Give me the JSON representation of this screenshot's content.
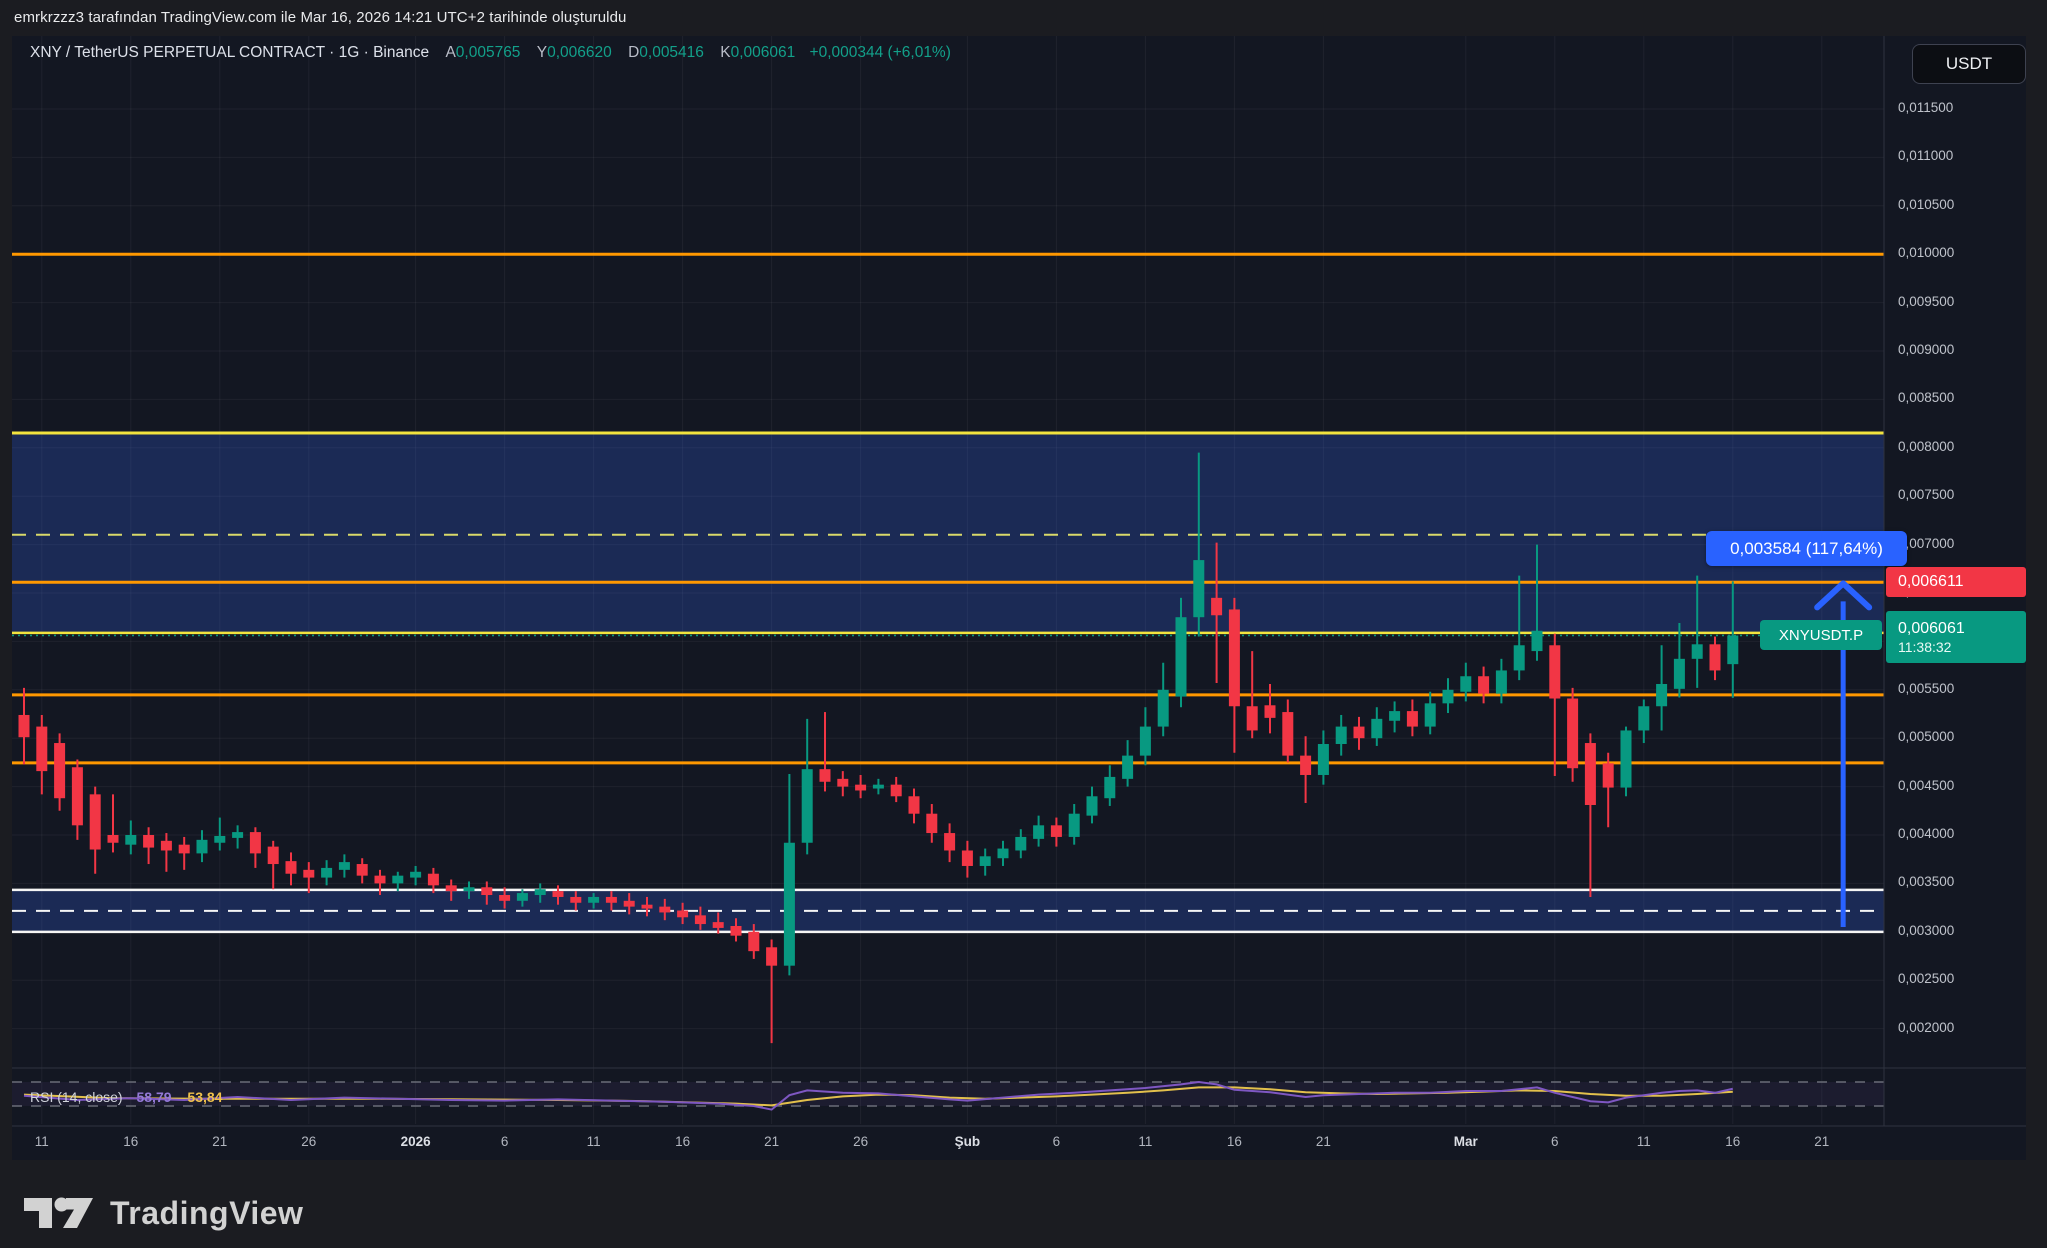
{
  "attribution": "emrkrzzz3 tarafından TradingView.com ile Mar 16, 2026 14:21 UTC+2 tarihinde oluşturuldu",
  "currency_button": "USDT",
  "symbol_bar": {
    "title": "XNY / TetherUS PERPETUAL CONTRACT · 1G · Binance",
    "open_letter": "A",
    "open": "0,005765",
    "high_letter": "Y",
    "high": "0,006620",
    "low_letter": "D",
    "low": "0,005416",
    "close_letter": "K",
    "close": "0,006061",
    "change": "+0,000344 (+6,01%)"
  },
  "labels": {
    "measure": "0,003584 (117,64%)",
    "line_price": "0,006611",
    "symbol_tag": "XNYUSDT.P",
    "last_price": "0,006061",
    "countdown": "11:38:32"
  },
  "rsi_legend": {
    "title": "RSI (14, close)",
    "value_rsi": "58,79",
    "value_ma": "53,84"
  },
  "logo_text": "TradingView",
  "colors": {
    "up": "#089981",
    "down": "#f23645",
    "orange_line": "#ff9800",
    "yellow_line": "#f2e33e",
    "yellow_dashed": "#d9d96a",
    "white_line": "#f5f5f5",
    "blue_drawing": "#2962ff",
    "zone_fill": "rgba(49,92,220,0.28)",
    "rsi_line": "#7e57c2",
    "rsi_ma": "#e2c04c",
    "bg_pane": "#131722",
    "bg_outer": "#1b1c21",
    "label_red_bg": "#f23645",
    "label_green_bg": "#089981"
  },
  "chart_data": {
    "type": "candlestick",
    "title": "XNY / TetherUS PERPETUAL CONTRACT · 1G · Binance",
    "ylim": [
      0.0016,
      0.01195
    ],
    "grid": true,
    "price_ticks": [
      {
        "label": "0,011500",
        "price": 0.0115
      },
      {
        "label": "0,011000",
        "price": 0.011
      },
      {
        "label": "0,010500",
        "price": 0.0105
      },
      {
        "label": "0,010000",
        "price": 0.01
      },
      {
        "label": "0,009500",
        "price": 0.0095
      },
      {
        "label": "0,009000",
        "price": 0.009
      },
      {
        "label": "0,008500",
        "price": 0.0085
      },
      {
        "label": "0,008000",
        "price": 0.008
      },
      {
        "label": "0,007500",
        "price": 0.0075
      },
      {
        "label": "0,007000",
        "price": 0.007
      },
      {
        "label": "0,006500",
        "price": 0.0065
      },
      {
        "label": "0,006000",
        "price": 0.006
      },
      {
        "label": "0,005500",
        "price": 0.0055
      },
      {
        "label": "0,005000",
        "price": 0.005
      },
      {
        "label": "0,004500",
        "price": 0.0045
      },
      {
        "label": "0,004000",
        "price": 0.004
      },
      {
        "label": "0,003500",
        "price": 0.0035
      },
      {
        "label": "0,003000",
        "price": 0.003
      },
      {
        "label": "0,002500",
        "price": 0.0025
      },
      {
        "label": "0,002000",
        "price": 0.002
      }
    ],
    "x_labels": [
      {
        "text": "11",
        "i": 1
      },
      {
        "text": "16",
        "i": 6
      },
      {
        "text": "21",
        "i": 11
      },
      {
        "text": "26",
        "i": 16
      },
      {
        "text": "2026",
        "i": 22,
        "major": true
      },
      {
        "text": "6",
        "i": 27
      },
      {
        "text": "11",
        "i": 32
      },
      {
        "text": "16",
        "i": 37
      },
      {
        "text": "21",
        "i": 42
      },
      {
        "text": "26",
        "i": 47
      },
      {
        "text": "Şub",
        "i": 53,
        "major": true
      },
      {
        "text": "6",
        "i": 58
      },
      {
        "text": "11",
        "i": 63
      },
      {
        "text": "16",
        "i": 68
      },
      {
        "text": "21",
        "i": 73
      },
      {
        "text": "Mar",
        "i": 81,
        "major": true
      },
      {
        "text": "6",
        "i": 86
      },
      {
        "text": "11",
        "i": 91
      },
      {
        "text": "16",
        "i": 96
      },
      {
        "text": "21",
        "i": 101
      }
    ],
    "levels": [
      {
        "price": 0.01,
        "color": "#ff9800",
        "w": 3,
        "style": "solid",
        "name": "resistance-0.010"
      },
      {
        "price": 0.008153,
        "color": "#f2e33e",
        "w": 3,
        "style": "solid",
        "name": "zone1-top-yellow"
      },
      {
        "price": 0.007102,
        "color": "#d9d96a",
        "w": 2,
        "style": "dashed",
        "name": "dashed-yellow"
      },
      {
        "price": 0.006611,
        "color": "#ff9800",
        "w": 3,
        "style": "solid",
        "name": "alert-line-0.006611"
      },
      {
        "price": 0.006088,
        "color": "#f2e33e",
        "w": 2.5,
        "style": "solid",
        "name": "zone1-bottom-yellow"
      },
      {
        "price": 0.006061,
        "color": "#089981",
        "w": 1.5,
        "style": "dotted",
        "name": "last-price-line"
      },
      {
        "price": 0.005447,
        "color": "#ff9800",
        "w": 3,
        "style": "solid",
        "name": "support-0.00545"
      },
      {
        "price": 0.004745,
        "color": "#ff9800",
        "w": 3,
        "style": "solid",
        "name": "support-0.00475"
      },
      {
        "price": 0.003433,
        "color": "#f5f5f5",
        "w": 2.5,
        "style": "solid",
        "name": "zone2-top-white"
      },
      {
        "price": 0.003216,
        "color": "#f5f5f5",
        "w": 2,
        "style": "dashed",
        "name": "zone2-mid-dashed"
      },
      {
        "price": 0.002999,
        "color": "#f5f5f5",
        "w": 2.5,
        "style": "solid",
        "name": "zone2-bottom-white"
      }
    ],
    "zones": [
      {
        "top": 0.008153,
        "bottom": 0.006088
      },
      {
        "top": 0.003433,
        "bottom": 0.002999
      }
    ],
    "arrow": {
      "x_index": 102.2,
      "from_price": 0.00305,
      "to_price": 0.00662
    },
    "candles": [
      [
        0.00524,
        0.00552,
        0.00473,
        0.00501
      ],
      [
        0.00512,
        0.00524,
        0.00442,
        0.00466
      ],
      [
        0.00495,
        0.00505,
        0.00425,
        0.00438
      ],
      [
        0.0047,
        0.00478,
        0.00395,
        0.0041
      ],
      [
        0.00442,
        0.0045,
        0.0036,
        0.00385
      ],
      [
        0.004,
        0.00442,
        0.00382,
        0.00392
      ],
      [
        0.0039,
        0.00415,
        0.0038,
        0.004
      ],
      [
        0.004,
        0.00408,
        0.0037,
        0.00387
      ],
      [
        0.00394,
        0.00402,
        0.00362,
        0.00384
      ],
      [
        0.0039,
        0.00398,
        0.00364,
        0.00381
      ],
      [
        0.00381,
        0.00405,
        0.00372,
        0.00395
      ],
      [
        0.00392,
        0.00418,
        0.00384,
        0.00399
      ],
      [
        0.00397,
        0.0041,
        0.00386,
        0.00403
      ],
      [
        0.00403,
        0.00408,
        0.00366,
        0.00381
      ],
      [
        0.00388,
        0.00394,
        0.00344,
        0.0037
      ],
      [
        0.00373,
        0.00382,
        0.00348,
        0.0036
      ],
      [
        0.00364,
        0.00372,
        0.0034,
        0.00356
      ],
      [
        0.00356,
        0.00374,
        0.00348,
        0.00366
      ],
      [
        0.00364,
        0.0038,
        0.00356,
        0.00372
      ],
      [
        0.0037,
        0.00376,
        0.0035,
        0.00358
      ],
      [
        0.00358,
        0.00364,
        0.00338,
        0.0035
      ],
      [
        0.0035,
        0.00362,
        0.00342,
        0.00358
      ],
      [
        0.00356,
        0.00368,
        0.00348,
        0.00362
      ],
      [
        0.0036,
        0.00366,
        0.0034,
        0.00348
      ],
      [
        0.00348,
        0.00354,
        0.00332,
        0.00342
      ],
      [
        0.00342,
        0.00352,
        0.00334,
        0.00346
      ],
      [
        0.00346,
        0.00352,
        0.00328,
        0.00338
      ],
      [
        0.00338,
        0.00346,
        0.00324,
        0.00332
      ],
      [
        0.00332,
        0.00344,
        0.00326,
        0.0034
      ],
      [
        0.00338,
        0.0035,
        0.0033,
        0.00344
      ],
      [
        0.00342,
        0.00348,
        0.00328,
        0.00336
      ],
      [
        0.00336,
        0.00342,
        0.00322,
        0.0033
      ],
      [
        0.0033,
        0.0034,
        0.00324,
        0.00336
      ],
      [
        0.00336,
        0.00342,
        0.00322,
        0.0033
      ],
      [
        0.00332,
        0.0034,
        0.00318,
        0.00326
      ],
      [
        0.00328,
        0.00336,
        0.00316,
        0.00324
      ],
      [
        0.00326,
        0.00334,
        0.00312,
        0.0032
      ],
      [
        0.00322,
        0.0033,
        0.00308,
        0.00315
      ],
      [
        0.00317,
        0.00326,
        0.00302,
        0.00308
      ],
      [
        0.0031,
        0.0032,
        0.00298,
        0.00304
      ],
      [
        0.00306,
        0.00314,
        0.0029,
        0.00296
      ],
      [
        0.003,
        0.00308,
        0.00272,
        0.0028
      ],
      [
        0.00284,
        0.00292,
        0.00185,
        0.00265
      ],
      [
        0.00265,
        0.00463,
        0.00255,
        0.00392
      ],
      [
        0.00392,
        0.0052,
        0.0038,
        0.00468
      ],
      [
        0.00468,
        0.00527,
        0.00445,
        0.00455
      ],
      [
        0.00458,
        0.00466,
        0.0044,
        0.0045
      ],
      [
        0.00452,
        0.00462,
        0.00438,
        0.00446
      ],
      [
        0.00448,
        0.00458,
        0.00442,
        0.00452
      ],
      [
        0.00452,
        0.0046,
        0.00434,
        0.0044
      ],
      [
        0.0044,
        0.00448,
        0.00412,
        0.00422
      ],
      [
        0.00422,
        0.00432,
        0.00392,
        0.00402
      ],
      [
        0.00402,
        0.00412,
        0.00372,
        0.00384
      ],
      [
        0.00384,
        0.00394,
        0.00356,
        0.00368
      ],
      [
        0.00368,
        0.00386,
        0.00358,
        0.00378
      ],
      [
        0.00376,
        0.00394,
        0.00368,
        0.00386
      ],
      [
        0.00384,
        0.00406,
        0.00376,
        0.00398
      ],
      [
        0.00396,
        0.0042,
        0.00388,
        0.0041
      ],
      [
        0.0041,
        0.00418,
        0.00388,
        0.00398
      ],
      [
        0.00398,
        0.00432,
        0.0039,
        0.00422
      ],
      [
        0.0042,
        0.0045,
        0.00412,
        0.0044
      ],
      [
        0.00438,
        0.00472,
        0.0043,
        0.0046
      ],
      [
        0.00458,
        0.00498,
        0.0045,
        0.00482
      ],
      [
        0.00482,
        0.00532,
        0.00472,
        0.00512
      ],
      [
        0.00512,
        0.00578,
        0.00502,
        0.0055
      ],
      [
        0.00543,
        0.00645,
        0.00532,
        0.00625
      ],
      [
        0.00625,
        0.00795,
        0.00605,
        0.00684
      ],
      [
        0.00645,
        0.00702,
        0.00557,
        0.00627
      ],
      [
        0.00633,
        0.00645,
        0.00485,
        0.00533
      ],
      [
        0.00533,
        0.0059,
        0.005,
        0.00508
      ],
      [
        0.00534,
        0.00556,
        0.00505,
        0.00521
      ],
      [
        0.00527,
        0.0054,
        0.00475,
        0.00482
      ],
      [
        0.00482,
        0.00502,
        0.00433,
        0.00462
      ],
      [
        0.00462,
        0.00508,
        0.00452,
        0.00494
      ],
      [
        0.00494,
        0.00524,
        0.00482,
        0.00512
      ],
      [
        0.00512,
        0.00522,
        0.00488,
        0.005
      ],
      [
        0.005,
        0.00532,
        0.00492,
        0.0052
      ],
      [
        0.00518,
        0.00538,
        0.00506,
        0.00528
      ],
      [
        0.00528,
        0.0054,
        0.00502,
        0.00512
      ],
      [
        0.00512,
        0.00548,
        0.00504,
        0.00536
      ],
      [
        0.00536,
        0.00562,
        0.00526,
        0.0055
      ],
      [
        0.00548,
        0.00578,
        0.00538,
        0.00564
      ],
      [
        0.00564,
        0.00574,
        0.00536,
        0.00546
      ],
      [
        0.00546,
        0.00582,
        0.00536,
        0.0057
      ],
      [
        0.0057,
        0.00668,
        0.0056,
        0.00596
      ],
      [
        0.0059,
        0.007,
        0.0058,
        0.00611
      ],
      [
        0.00596,
        0.00608,
        0.00461,
        0.00541
      ],
      [
        0.00541,
        0.00552,
        0.00455,
        0.00469
      ],
      [
        0.00495,
        0.00505,
        0.00336,
        0.00431
      ],
      [
        0.00474,
        0.00485,
        0.00408,
        0.00449
      ],
      [
        0.00449,
        0.00512,
        0.0044,
        0.00508
      ],
      [
        0.00508,
        0.0054,
        0.00495,
        0.00533
      ],
      [
        0.00533,
        0.00596,
        0.00508,
        0.00556
      ],
      [
        0.00551,
        0.00619,
        0.00542,
        0.00582
      ],
      [
        0.00582,
        0.00668,
        0.00552,
        0.00597
      ],
      [
        0.00597,
        0.00605,
        0.0056,
        0.0057
      ],
      [
        0.005765,
        0.00662,
        0.005416,
        0.006061
      ]
    ],
    "rsi": {
      "band": [
        30,
        70
      ],
      "series_rsi": [
        [
          0,
          47
        ],
        [
          3,
          40
        ],
        [
          6,
          43
        ],
        [
          9,
          40
        ],
        [
          12,
          45
        ],
        [
          15,
          40
        ],
        [
          18,
          44
        ],
        [
          21,
          42
        ],
        [
          24,
          40
        ],
        [
          27,
          39
        ],
        [
          30,
          41
        ],
        [
          33,
          39
        ],
        [
          36,
          37
        ],
        [
          39,
          34
        ],
        [
          41,
          30
        ],
        [
          42,
          24
        ],
        [
          43,
          48
        ],
        [
          44,
          56
        ],
        [
          46,
          52
        ],
        [
          48,
          51
        ],
        [
          50,
          46
        ],
        [
          52,
          41
        ],
        [
          53,
          39
        ],
        [
          55,
          44
        ],
        [
          57,
          49
        ],
        [
          59,
          52
        ],
        [
          61,
          56
        ],
        [
          63,
          60
        ],
        [
          65,
          66
        ],
        [
          66,
          70
        ],
        [
          67,
          66
        ],
        [
          68,
          57
        ],
        [
          70,
          53
        ],
        [
          72,
          45
        ],
        [
          73,
          48
        ],
        [
          75,
          50
        ],
        [
          77,
          52
        ],
        [
          79,
          52
        ],
        [
          81,
          55
        ],
        [
          83,
          55
        ],
        [
          85,
          61
        ],
        [
          86,
          52
        ],
        [
          87,
          45
        ],
        [
          88,
          38
        ],
        [
          89,
          36
        ],
        [
          90,
          44
        ],
        [
          91,
          48
        ],
        [
          92,
          52
        ],
        [
          93,
          55
        ],
        [
          94,
          56
        ],
        [
          95,
          52
        ],
        [
          96,
          58.79
        ]
      ],
      "series_ma": [
        [
          0,
          49
        ],
        [
          5,
          43
        ],
        [
          10,
          42
        ],
        [
          15,
          42
        ],
        [
          20,
          42
        ],
        [
          25,
          41
        ],
        [
          30,
          40
        ],
        [
          35,
          38
        ],
        [
          40,
          34
        ],
        [
          42,
          31
        ],
        [
          44,
          40
        ],
        [
          46,
          46
        ],
        [
          48,
          49
        ],
        [
          50,
          48
        ],
        [
          52,
          44
        ],
        [
          54,
          42
        ],
        [
          56,
          44
        ],
        [
          58,
          46
        ],
        [
          60,
          49
        ],
        [
          62,
          52
        ],
        [
          64,
          56
        ],
        [
          66,
          61
        ],
        [
          68,
          61
        ],
        [
          70,
          58
        ],
        [
          72,
          53
        ],
        [
          74,
          51
        ],
        [
          76,
          50
        ],
        [
          78,
          51
        ],
        [
          80,
          52
        ],
        [
          82,
          54
        ],
        [
          84,
          56
        ],
        [
          86,
          55
        ],
        [
          88,
          50
        ],
        [
          90,
          47
        ],
        [
          92,
          47
        ],
        [
          94,
          50
        ],
        [
          96,
          53.84
        ]
      ]
    }
  }
}
